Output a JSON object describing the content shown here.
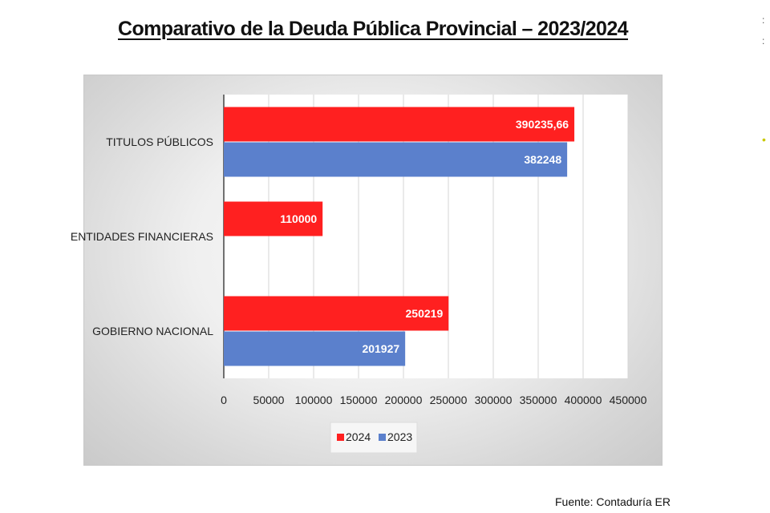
{
  "title": "Comparativo de la Deuda Pública Provincial – 2023/2024",
  "footer": "Fuente: Contaduría  ER",
  "edge_marks": [
    ":",
    ":",
    "•"
  ],
  "colors": {
    "2024": "#ff2020",
    "2023": "#5b80cc"
  },
  "chart_data": {
    "type": "bar",
    "orientation": "horizontal",
    "title": "Comparativo de la Deuda Pública Provincial – 2023/2024",
    "categories": [
      "TITULOS PÚBLICOS",
      "ENTIDADES FINANCIERAS",
      "GOBIERNO NACIONAL"
    ],
    "series": [
      {
        "name": "2024",
        "values": [
          390235.66,
          110000,
          250219
        ],
        "labels": [
          "390235,66",
          "110000",
          "250219"
        ]
      },
      {
        "name": "2023",
        "values": [
          382248,
          null,
          201927
        ],
        "labels": [
          "382248",
          "",
          "201927"
        ]
      }
    ],
    "xlim": [
      0,
      450000
    ],
    "xticks": [
      "0",
      "50000",
      "100000",
      "150000",
      "200000",
      "250000",
      "300000",
      "350000",
      "400000",
      "450000"
    ],
    "grid": true,
    "legend": "bottom",
    "xlabel": "",
    "ylabel": ""
  }
}
